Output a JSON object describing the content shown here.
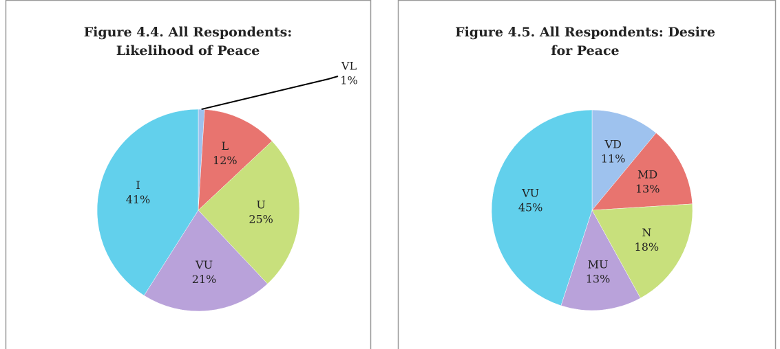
{
  "chart_data": [
    {
      "type": "pie",
      "title": [
        "Figure 4.4. All Respondents:",
        "Likelihood of Peace"
      ],
      "categories": [
        "VL",
        "L",
        "U",
        "VU",
        "I"
      ],
      "values": [
        1,
        12,
        25,
        21,
        41
      ],
      "value_labels": [
        "1%",
        "12%",
        "25%",
        "21%",
        "41%"
      ],
      "colors": [
        "#9ec2ee",
        "#e8746f",
        "#c8e07c",
        "#b9a2da",
        "#62d0ec"
      ]
    },
    {
      "type": "pie",
      "title": [
        "Figure 4.5. All Respondents: Desire",
        "for Peace"
      ],
      "categories": [
        "VD",
        "MD",
        "N",
        "MU",
        "VU"
      ],
      "values": [
        11,
        13,
        18,
        13,
        45
      ],
      "value_labels": [
        "11%",
        "13%",
        "18%",
        "13%",
        "45%"
      ],
      "colors": [
        "#9ec2ee",
        "#e8746f",
        "#c8e07c",
        "#b9a2da",
        "#62d0ec"
      ]
    }
  ]
}
